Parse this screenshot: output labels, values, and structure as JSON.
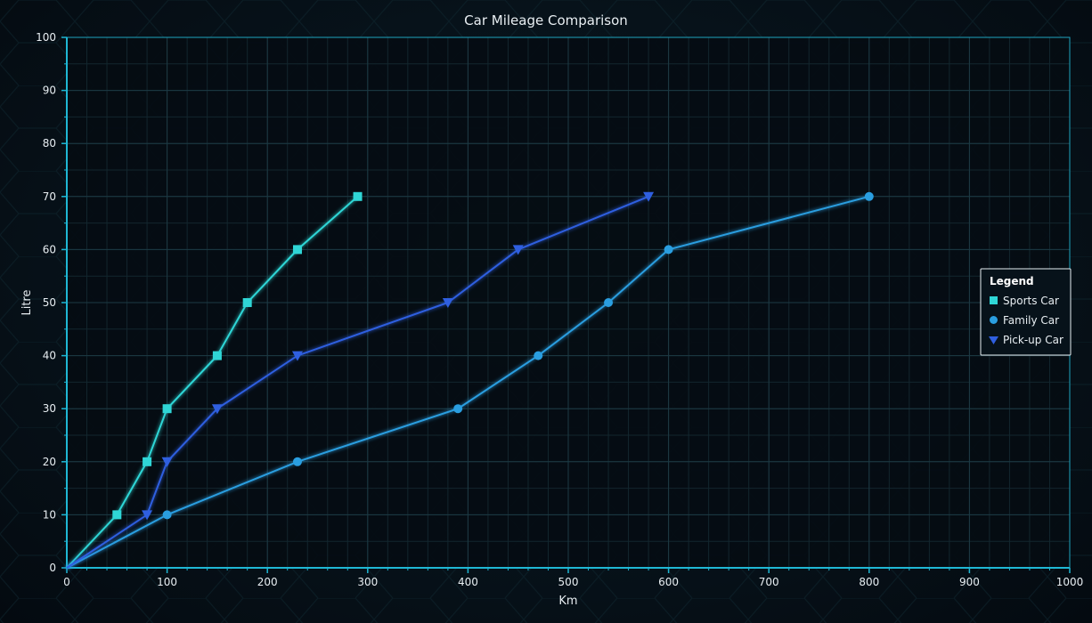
{
  "chart_data": {
    "type": "line",
    "title": "Car Mileage Comparison",
    "xlabel": "Km",
    "ylabel": "Litre",
    "xlim": [
      0,
      1000
    ],
    "ylim": [
      0,
      100
    ],
    "x_ticks": [
      0,
      100,
      200,
      300,
      400,
      500,
      600,
      700,
      800,
      900,
      1000
    ],
    "y_ticks": [
      0,
      10,
      20,
      30,
      40,
      50,
      60,
      70,
      80,
      90,
      100
    ],
    "grid": true,
    "legend": {
      "title": "Legend",
      "position": "right"
    },
    "series": [
      {
        "name": "Sports Car",
        "marker": "square",
        "color": "#2fd6d6",
        "points": [
          [
            0,
            0
          ],
          [
            50,
            10
          ],
          [
            80,
            20
          ],
          [
            100,
            30
          ],
          [
            150,
            40
          ],
          [
            180,
            50
          ],
          [
            230,
            60
          ],
          [
            290,
            70
          ]
        ]
      },
      {
        "name": "Family Car",
        "marker": "circle",
        "color": "#2a9ee0",
        "points": [
          [
            0,
            0
          ],
          [
            100,
            10
          ],
          [
            230,
            20
          ],
          [
            390,
            30
          ],
          [
            470,
            40
          ],
          [
            540,
            50
          ],
          [
            600,
            60
          ],
          [
            800,
            70
          ]
        ]
      },
      {
        "name": "Pick-up Car",
        "marker": "triangle-down",
        "color": "#2f5fe0",
        "points": [
          [
            0,
            0
          ],
          [
            80,
            10
          ],
          [
            100,
            20
          ],
          [
            150,
            30
          ],
          [
            230,
            40
          ],
          [
            380,
            50
          ],
          [
            450,
            60
          ],
          [
            580,
            70
          ]
        ]
      }
    ]
  },
  "colors": {
    "axis": "#1fb7d4",
    "grid_major": "#1d3a44",
    "grid_minor": "#13262e",
    "legend_border": "#e6eef2",
    "legend_bg": "#07121a"
  }
}
